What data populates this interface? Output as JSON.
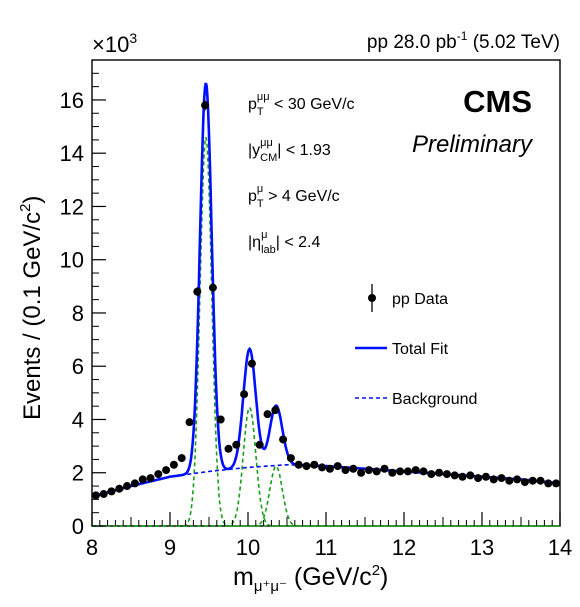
{
  "chart_data": {
    "type": "line",
    "lumi_label": "pp 28.0 pb",
    "lumi_sup": "-1",
    "energy_label": "(5.02 TeV)",
    "y_multiplier_base": "×10",
    "y_multiplier_exp": "3",
    "experiment": "CMS",
    "status": "Preliminary",
    "xlabel": {
      "main": "m",
      "sub": "μ⁺μ⁻",
      "unit": "(GeV/c",
      "sup": "2",
      "close": ")"
    },
    "ylabel": {
      "main": "Events / (0.1 GeV/c",
      "sup": "2",
      "close": ")"
    },
    "xlim": [
      8,
      14
    ],
    "ylim": [
      0,
      17.5
    ],
    "x_ticks": [
      8,
      9,
      10,
      11,
      12,
      13,
      14
    ],
    "y_ticks": [
      0,
      2,
      4,
      6,
      8,
      10,
      12,
      14,
      16
    ],
    "cuts": [
      {
        "a": "p",
        "sup": "μμ",
        "sub": "T",
        "b": " < 30 GeV/c"
      },
      {
        "a": "|y",
        "sup": "μμ",
        "sub": "CM",
        "b": "| < 1.93"
      },
      {
        "a": "p",
        "sup": "μ",
        "sub": "T",
        "b": " > 4 GeV/c"
      },
      {
        "a": "|η",
        "sup": "μ",
        "sub": "lab",
        "b": "| < 2.4"
      }
    ],
    "legend": {
      "data": "pp Data",
      "fit": "Total Fit",
      "background": "Background"
    },
    "colors": {
      "data": "#000000",
      "fit": "#0010ff",
      "background": "#0010ff",
      "components": "#1a9e1a"
    },
    "series": [
      {
        "name": "pp Data",
        "kind": "points",
        "x": [
          8.05,
          8.15,
          8.25,
          8.35,
          8.45,
          8.55,
          8.65,
          8.75,
          8.85,
          8.95,
          9.05,
          9.15,
          9.25,
          9.35,
          9.45,
          9.55,
          9.65,
          9.75,
          9.85,
          9.95,
          10.05,
          10.15,
          10.25,
          10.35,
          10.45,
          10.55,
          10.65,
          10.75,
          10.85,
          10.95,
          11.05,
          11.15,
          11.25,
          11.35,
          11.45,
          11.55,
          11.65,
          11.75,
          11.85,
          11.95,
          12.05,
          12.15,
          12.25,
          12.35,
          12.45,
          12.55,
          12.65,
          12.75,
          12.85,
          12.95,
          13.05,
          13.15,
          13.25,
          13.35,
          13.45,
          13.55,
          13.65,
          13.75,
          13.85,
          13.95
        ],
        "y": [
          1.15,
          1.2,
          1.3,
          1.4,
          1.5,
          1.6,
          1.75,
          1.8,
          1.95,
          2.1,
          2.3,
          2.55,
          3.9,
          8.8,
          15.8,
          8.95,
          4.0,
          2.9,
          3.05,
          4.95,
          6.1,
          3.05,
          4.2,
          4.35,
          3.25,
          2.55,
          2.3,
          2.25,
          2.3,
          2.2,
          2.15,
          2.25,
          2.1,
          2.15,
          2.0,
          2.1,
          2.05,
          2.15,
          2.0,
          2.05,
          2.05,
          2.1,
          2.05,
          1.95,
          2.0,
          1.95,
          1.9,
          1.85,
          1.9,
          1.8,
          1.85,
          1.75,
          1.8,
          1.7,
          1.75,
          1.65,
          1.7,
          1.7,
          1.6,
          1.6
        ]
      },
      {
        "name": "Total Fit",
        "kind": "model",
        "background_points": [
          [
            8,
            1.1
          ],
          [
            8.5,
            1.5
          ],
          [
            9,
            1.85
          ],
          [
            9.5,
            2.05
          ],
          [
            10,
            2.2
          ],
          [
            10.5,
            2.3
          ],
          [
            11,
            2.25
          ],
          [
            11.5,
            2.15
          ],
          [
            12,
            2.05
          ],
          [
            12.5,
            1.95
          ],
          [
            13,
            1.85
          ],
          [
            13.5,
            1.75
          ],
          [
            14,
            1.6
          ]
        ],
        "peaks": [
          {
            "mean": 9.46,
            "height": 14.6,
            "sigma": 0.075
          },
          {
            "mean": 10.02,
            "height": 4.45,
            "sigma": 0.08
          },
          {
            "mean": 10.36,
            "height": 2.25,
            "sigma": 0.08
          }
        ]
      },
      {
        "name": "Background",
        "kind": "model"
      }
    ]
  }
}
